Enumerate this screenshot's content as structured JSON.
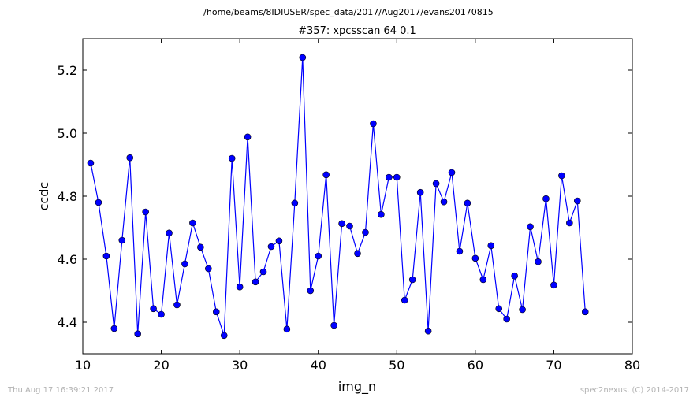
{
  "header": {
    "path": "/home/beams/8IDIUSER/spec_data/2017/Aug2017/evans20170815"
  },
  "footer": {
    "timestamp": "Thu Aug 17 16:39:21 2017",
    "credit": "spec2nexus, (C) 2014-2017"
  },
  "chart_data": {
    "type": "line",
    "title": "#357: xpcsscan 64 0.1",
    "xlabel": "img_n",
    "ylabel": "ccdc",
    "xlim": [
      10,
      80
    ],
    "ylim": [
      4.3,
      5.3
    ],
    "xticks": [
      10,
      20,
      30,
      40,
      50,
      60,
      70,
      80
    ],
    "yticks": [
      4.4,
      4.6,
      4.8,
      5.0,
      5.2
    ],
    "xtick_labels": [
      "10",
      "20",
      "30",
      "40",
      "50",
      "60",
      "70",
      "80"
    ],
    "ytick_labels": [
      "4.4",
      "4.6",
      "4.8",
      "5.0",
      "5.2"
    ],
    "grid": false,
    "legend": null,
    "series": [
      {
        "color": "#0000ff",
        "marker": "circle",
        "x": [
          11,
          12,
          13,
          14,
          15,
          16,
          17,
          18,
          19,
          20,
          21,
          22,
          23,
          24,
          25,
          26,
          27,
          28,
          29,
          30,
          31,
          32,
          33,
          34,
          35,
          36,
          37,
          38,
          39,
          40,
          41,
          42,
          43,
          44,
          45,
          46,
          47,
          48,
          49,
          50,
          51,
          52,
          53,
          54,
          55,
          56,
          57,
          58,
          59,
          60,
          61,
          62,
          63,
          64,
          65,
          66,
          67,
          68,
          69,
          70,
          71,
          72,
          73,
          74
        ],
        "y": [
          4.905,
          4.78,
          4.61,
          4.38,
          4.66,
          4.922,
          4.363,
          4.75,
          4.443,
          4.425,
          4.683,
          4.455,
          4.585,
          4.715,
          4.638,
          4.57,
          4.433,
          4.358,
          4.92,
          4.512,
          4.988,
          4.528,
          4.56,
          4.64,
          4.658,
          4.378,
          4.778,
          5.24,
          4.5,
          4.61,
          4.868,
          4.39,
          4.713,
          4.705,
          4.618,
          4.685,
          5.03,
          4.742,
          4.86,
          4.86,
          4.47,
          4.535,
          4.812,
          4.372,
          4.84,
          4.782,
          4.875,
          4.625,
          4.778,
          4.603,
          4.535,
          4.643,
          4.443,
          4.41,
          4.547,
          4.44,
          4.703,
          4.592,
          4.792,
          4.518,
          4.865,
          4.715,
          4.785,
          4.433
        ]
      }
    ]
  }
}
